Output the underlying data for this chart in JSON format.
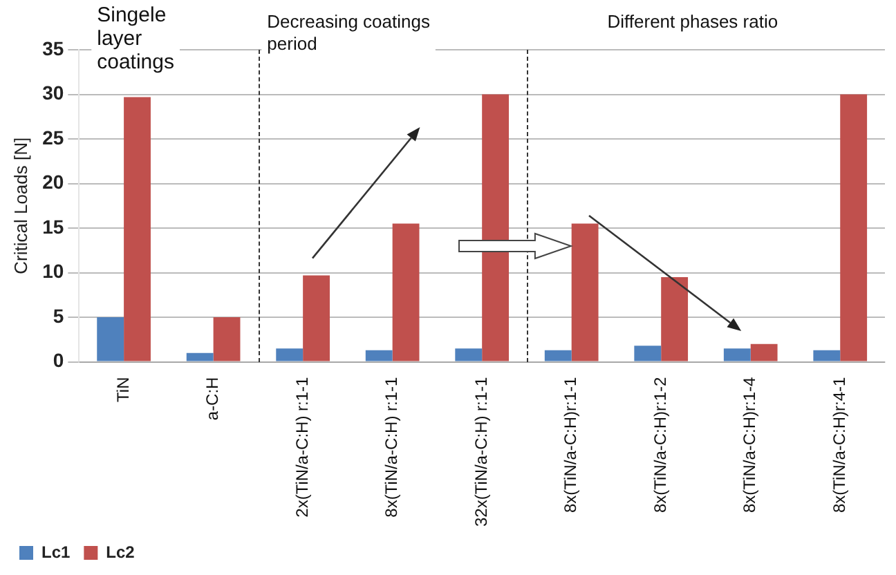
{
  "chart_data": {
    "type": "bar",
    "ylabel": "Critical Loads [N]",
    "categories": [
      "TiN",
      "a-C:H",
      "2x(TiN/a-C:H) r:1-1",
      "8x(TiN/a-C:H) r:1-1",
      "32x(TiN/a-C:H) r:1-1",
      "8x(TiN/a-C:H)r:1-1",
      "8x(TiN/a-C:H)r:1-2",
      "8x(TiN/a-C:H)r:1-4",
      "8x(TiN/a-C:H)r:4-1"
    ],
    "series": [
      {
        "name": "Lc1",
        "color": "#4f81bd",
        "values": [
          5,
          1,
          1.5,
          1.3,
          1.5,
          1.3,
          1.8,
          1.5,
          1.3
        ]
      },
      {
        "name": "Lc2",
        "color": "#c0504d",
        "values": [
          29.7,
          5,
          9.7,
          15.5,
          30,
          15.5,
          9.5,
          2,
          30
        ]
      }
    ],
    "ylim": [
      0,
      35
    ],
    "yticks": [
      0,
      5,
      10,
      15,
      20,
      25,
      30,
      35
    ],
    "grid": "y",
    "legend": "bottom left",
    "annotations": [
      "Singele layer coatings",
      "Decreasing coatings period",
      "Different phases ratio"
    ]
  }
}
